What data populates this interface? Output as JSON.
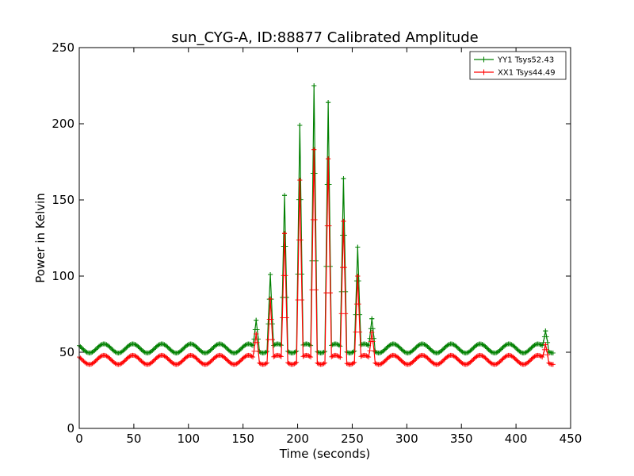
{
  "chart_data": {
    "type": "line",
    "title": "sun_CYG-A, ID:88877 Calibrated Amplitude",
    "xlabel": "Time (seconds)",
    "ylabel": "Power in Kelvin",
    "xlim": [
      0,
      450
    ],
    "ylim": [
      0,
      250
    ],
    "xticks": [
      0,
      50,
      100,
      150,
      200,
      250,
      300,
      350,
      400,
      450
    ],
    "yticks": [
      0,
      50,
      100,
      150,
      200,
      250
    ],
    "xtick_labels": [
      "0",
      "50",
      "100",
      "150",
      "200",
      "250",
      "300",
      "350",
      "400",
      "450"
    ],
    "ytick_labels": [
      "0",
      "50",
      "100",
      "150",
      "200",
      "250"
    ],
    "grid": false,
    "legend_position": "top-right",
    "marker": "+",
    "series": [
      {
        "name": "YY1 Tsys52.43",
        "color": "#008000",
        "baseline": 52.5,
        "ripple_amplitude": 3,
        "ripple_period": 26.5,
        "x_range": [
          0,
          434
        ],
        "sample_interval": 1,
        "peaks": [
          {
            "x": 162,
            "y": 71
          },
          {
            "x": 175,
            "y": 101
          },
          {
            "x": 188,
            "y": 153
          },
          {
            "x": 202,
            "y": 199
          },
          {
            "x": 215,
            "y": 225
          },
          {
            "x": 228,
            "y": 214
          },
          {
            "x": 242,
            "y": 164
          },
          {
            "x": 255,
            "y": 119
          },
          {
            "x": 268,
            "y": 72
          },
          {
            "x": 427,
            "y": 64
          }
        ]
      },
      {
        "name": "XX1 Tsys44.49",
        "color": "#ff0000",
        "baseline": 45,
        "ripple_amplitude": 3,
        "ripple_period": 26.5,
        "x_range": [
          0,
          434
        ],
        "sample_interval": 1,
        "peaks": [
          {
            "x": 162,
            "y": 62
          },
          {
            "x": 175,
            "y": 85
          },
          {
            "x": 188,
            "y": 128
          },
          {
            "x": 202,
            "y": 163
          },
          {
            "x": 215,
            "y": 183
          },
          {
            "x": 228,
            "y": 177
          },
          {
            "x": 242,
            "y": 136
          },
          {
            "x": 255,
            "y": 100
          },
          {
            "x": 268,
            "y": 63
          },
          {
            "x": 427,
            "y": 55
          }
        ]
      }
    ]
  }
}
